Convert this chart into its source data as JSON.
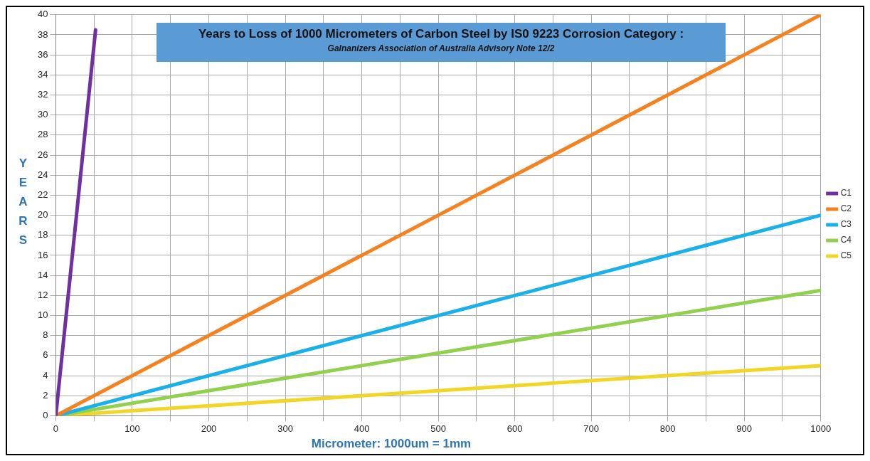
{
  "chart_data": {
    "type": "line",
    "title": "Years to Loss of 1000 Micrometers of Carbon Steel by  IS0 9223 Corrosion Category :",
    "subtitle": "Galnanizers Association of Australia Advisory Note 12/2",
    "xlabel": "Micrometer: 1000um = 1mm",
    "ylabel": "YEARS",
    "series": [
      {
        "name": "C1",
        "color": "#7030a0",
        "x": [
          0,
          52
        ],
        "values": [
          0,
          38.5
        ]
      },
      {
        "name": "C2",
        "color": "#f58220",
        "x": [
          0,
          1000
        ],
        "values": [
          0,
          40
        ]
      },
      {
        "name": "C3",
        "color": "#1ab0e8",
        "x": [
          0,
          1000
        ],
        "values": [
          0,
          20
        ]
      },
      {
        "name": "C4",
        "color": "#92d050",
        "x": [
          0,
          1000
        ],
        "values": [
          0,
          12.5
        ]
      },
      {
        "name": "C5",
        "color": "#f2d627",
        "x": [
          0,
          1000
        ],
        "values": [
          0,
          5
        ]
      }
    ],
    "xlim": [
      0,
      1000
    ],
    "xticks": [
      0,
      {
        "value": 50,
        "label": null
      },
      100,
      {
        "value": 150,
        "label": null
      },
      200,
      {
        "value": 250,
        "label": null
      },
      300,
      {
        "value": 350,
        "label": null
      },
      400,
      {
        "value": 450,
        "label": null
      },
      500,
      {
        "value": 550,
        "label": null
      },
      600,
      {
        "value": 650,
        "label": null
      },
      700,
      {
        "value": 750,
        "label": null
      },
      800,
      {
        "value": 850,
        "label": null
      },
      900,
      {
        "value": 950,
        "label": null
      },
      1000
    ],
    "ylim": [
      0,
      40
    ],
    "yticks": [
      0,
      2,
      4,
      6,
      8,
      10,
      12,
      14,
      16,
      18,
      20,
      22,
      24,
      26,
      28,
      30,
      32,
      34,
      36,
      38,
      40
    ],
    "grid": true,
    "legend": "right",
    "marker": "none",
    "line_style": "solid"
  }
}
